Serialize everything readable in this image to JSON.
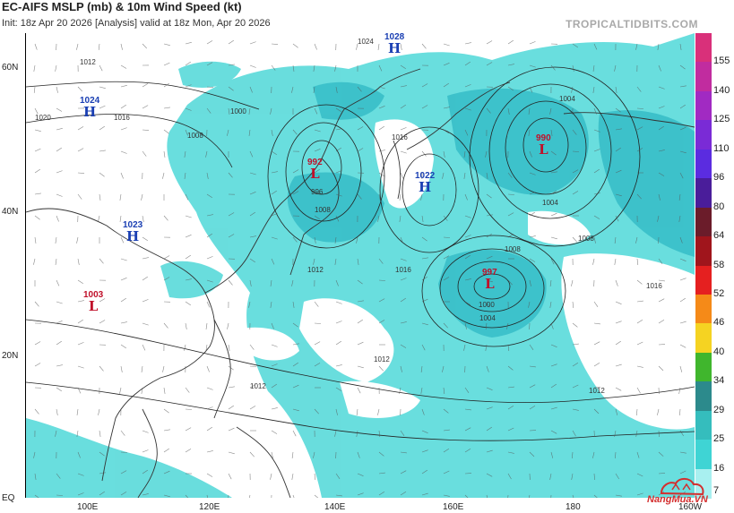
{
  "header": {
    "title": "EC-AIFS MSLP (mb) & 10m Wind Speed (kt)",
    "init_line": "Init: 18z Apr 20 2026   [Analysis]   valid at 18z Mon, Apr 20 2026",
    "brand": "TROPICALTIDBITS.COM"
  },
  "axes": {
    "lat_labels": [
      "60N",
      "40N",
      "20N",
      "EQ"
    ],
    "lon_labels": [
      "100E",
      "120E",
      "140E",
      "160E",
      "180",
      "160W"
    ]
  },
  "colorbar": {
    "labels": [
      "155",
      "140",
      "125",
      "110",
      "96",
      "80",
      "64",
      "58",
      "52",
      "46",
      "40",
      "34",
      "29",
      "25",
      "16",
      "7"
    ],
    "colors": [
      "#d9307a",
      "#c12c9f",
      "#a12ac2",
      "#7a2bd6",
      "#5b2ce0",
      "#4a1d9a",
      "#6b1c2a",
      "#a0151c",
      "#e52020",
      "#f58a18",
      "#f5d322",
      "#40b62d",
      "#2c8a8c",
      "#35bdbd",
      "#3fd4d4",
      "#a8f0f0"
    ]
  },
  "pressure_systems": [
    {
      "type": "H",
      "value": "1028",
      "color": "blue"
    },
    {
      "type": "H",
      "value": "1024",
      "color": "blue"
    },
    {
      "type": "L",
      "value": "990",
      "color": "red"
    },
    {
      "type": "L",
      "value": "992",
      "color": "red"
    },
    {
      "type": "H",
      "value": "1022",
      "color": "blue"
    },
    {
      "type": "H",
      "value": "1023",
      "color": "blue"
    },
    {
      "type": "L",
      "value": "997",
      "color": "red"
    },
    {
      "type": "L",
      "value": "1003",
      "color": "red"
    }
  ],
  "isobar_labels": [
    "1012",
    "1016",
    "1020",
    "1024",
    "1008",
    "1000",
    "996",
    "1004",
    "1008",
    "1016",
    "1012",
    "1012",
    "1012",
    "1016",
    "1000",
    "1004",
    "1008",
    "1012",
    "1004",
    "1008",
    "1016"
  ],
  "watermark": {
    "text": "NangMua.VN"
  }
}
